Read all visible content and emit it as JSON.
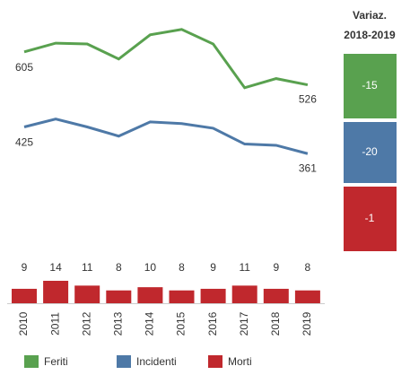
{
  "chart_data": [
    {
      "type": "line",
      "series": [
        {
          "name": "Feriti",
          "color": "#59a14f",
          "values": [
            605,
            626,
            624,
            588,
            646,
            659,
            624,
            519,
            541,
            526
          ]
        },
        {
          "name": "Incidenti",
          "color": "#4e79a7",
          "values": [
            425,
            444,
            425,
            403,
            437,
            433,
            422,
            384,
            381,
            361
          ]
        }
      ],
      "ylim": [
        340,
        680
      ]
    },
    {
      "type": "bar",
      "categories": [
        "2010",
        "2011",
        "2012",
        "2013",
        "2014",
        "2015",
        "2016",
        "2017",
        "2018",
        "2019"
      ],
      "series": [
        {
          "name": "Morti",
          "color": "#c0282d",
          "values": [
            9,
            14,
            11,
            8,
            10,
            8,
            9,
            11,
            9,
            8
          ]
        }
      ],
      "ylim": [
        0,
        14
      ]
    }
  ],
  "variation": {
    "title": [
      "Variaz.",
      "2018-2019"
    ],
    "values": [
      -15,
      -20,
      -1
    ],
    "colors": [
      "#59a14f",
      "#4e79a7",
      "#c0282d"
    ]
  }
}
